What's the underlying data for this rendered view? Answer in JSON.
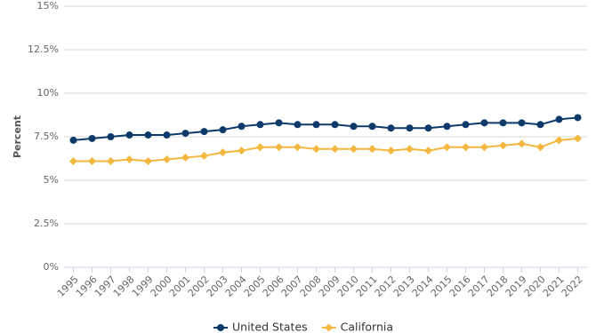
{
  "chart_data": {
    "type": "line",
    "y_axis_label": "Percent",
    "categories": [
      "1995",
      "1996",
      "1997",
      "1998",
      "1999",
      "2000",
      "2001",
      "2002",
      "2003",
      "2004",
      "2005",
      "2006",
      "2007",
      "2008",
      "2009",
      "2010",
      "2011",
      "2012",
      "2013",
      "2014",
      "2015",
      "2016",
      "2017",
      "2018",
      "2019",
      "2020",
      "2021",
      "2022"
    ],
    "series": [
      {
        "name": "United States",
        "color": "#0d3a6b",
        "marker": "circle",
        "values": [
          7.3,
          7.4,
          7.5,
          7.6,
          7.6,
          7.6,
          7.7,
          7.8,
          7.9,
          8.1,
          8.2,
          8.3,
          8.2,
          8.2,
          8.2,
          8.1,
          8.1,
          8.0,
          8.0,
          8.0,
          8.1,
          8.2,
          8.3,
          8.3,
          8.3,
          8.2,
          8.5,
          8.6
        ]
      },
      {
        "name": "California",
        "color": "#f4b73f",
        "marker": "diamond",
        "values": [
          6.1,
          6.1,
          6.1,
          6.2,
          6.1,
          6.2,
          6.3,
          6.4,
          6.6,
          6.7,
          6.9,
          6.9,
          6.9,
          6.8,
          6.8,
          6.8,
          6.8,
          6.7,
          6.8,
          6.7,
          6.9,
          6.9,
          6.9,
          7.0,
          7.1,
          6.9,
          7.3,
          7.4
        ]
      }
    ],
    "ylim": [
      0,
      15
    ],
    "yticks": [
      {
        "value": 0,
        "label": "0%"
      },
      {
        "value": 2.5,
        "label": "2.5%"
      },
      {
        "value": 5,
        "label": "5%"
      },
      {
        "value": 7.5,
        "label": "7.5%"
      },
      {
        "value": 10,
        "label": "10%"
      },
      {
        "value": 12.5,
        "label": "12.5%"
      },
      {
        "value": 15,
        "label": "15%"
      }
    ],
    "grid": true,
    "legend": "bottom"
  }
}
